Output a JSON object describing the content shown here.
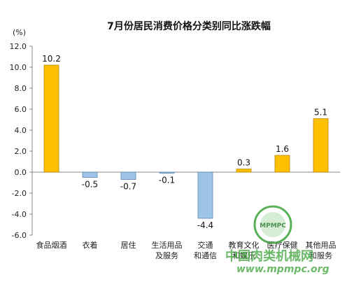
{
  "chart_data": {
    "type": "bar",
    "title": "7月份居民消费价格分类别同比涨跌幅",
    "unit": "(%)",
    "categories": [
      [
        "食品烟酒"
      ],
      [
        "衣着"
      ],
      [
        "居住"
      ],
      [
        "生活用品",
        "及服务"
      ],
      [
        "交通",
        "和通信"
      ],
      [
        "教育文化",
        "和娱乐"
      ],
      [
        "医疗保健"
      ],
      [
        "其他用品",
        "和服务"
      ]
    ],
    "values": [
      10.2,
      -0.5,
      -0.7,
      -0.1,
      -4.4,
      0.3,
      1.6,
      5.1
    ],
    "data_labels": [
      "10.2",
      "-0.5",
      "-0.7",
      "-0.1",
      "-4.4",
      "0.3",
      "1.6",
      "5.1"
    ],
    "ylim": [
      -6.0,
      12.0
    ],
    "yticks": [
      -6.0,
      -4.0,
      -2.0,
      0.0,
      2.0,
      4.0,
      6.0,
      8.0,
      10.0,
      12.0
    ],
    "ytick_labels": [
      "-6.0",
      "-4.0",
      "-2.0",
      "0.0",
      "2.0",
      "4.0",
      "6.0",
      "8.0",
      "10.0",
      "12.0"
    ],
    "colors": {
      "positive": "#FFC000",
      "positive_edge": "#B8860B",
      "negative": "#9DC3E6",
      "negative_edge": "#5B87B5"
    },
    "grid": false,
    "legend": "none"
  },
  "watermark": {
    "text": "中国肉类机械网",
    "url": "www.mpmpc.org",
    "logo_text": "MPMPC"
  }
}
